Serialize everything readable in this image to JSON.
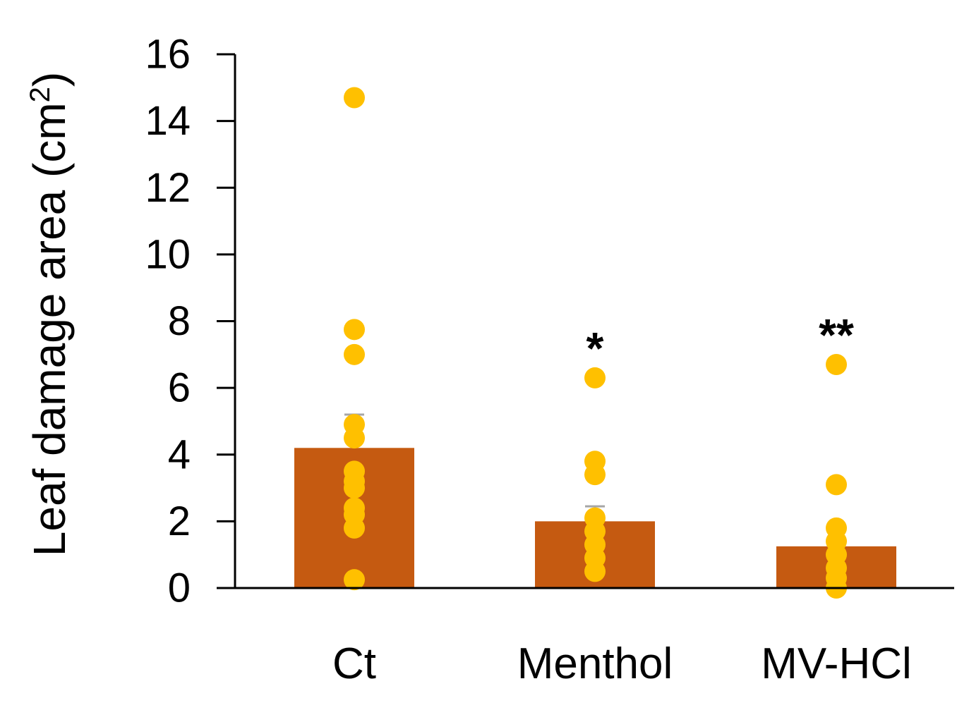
{
  "chart_data": {
    "type": "bar",
    "title": "",
    "xlabel": "",
    "ylabel": "Leaf damage area (cm",
    "ylabel_superscript": "2",
    "ylabel_close": ")",
    "ylim": [
      0,
      16
    ],
    "yticks": [
      0,
      2,
      4,
      6,
      8,
      10,
      12,
      14,
      16
    ],
    "ytick_labels": [
      "0",
      "2",
      "4",
      "6",
      "8",
      "10",
      "12",
      "14",
      "16"
    ],
    "categories": [
      "Ct",
      "Menthol",
      "MV-HCl"
    ],
    "values": [
      4.2,
      2.0,
      1.25
    ],
    "error_upper": [
      5.2,
      2.45,
      1.25
    ],
    "significance": [
      "",
      "*",
      "**"
    ],
    "points": [
      [
        14.7,
        7.75,
        7.0,
        4.9,
        4.5,
        3.5,
        3.2,
        3.0,
        2.4,
        2.2,
        1.8,
        0.25
      ],
      [
        6.3,
        3.8,
        3.4,
        2.1,
        1.7,
        1.3,
        0.9,
        0.5
      ],
      [
        6.7,
        3.1,
        1.8,
        1.4,
        1.0,
        0.6,
        0.3,
        0.0
      ]
    ],
    "bar_color": "#C55A11",
    "point_color": "#FFC000",
    "error_color": "#A6A6A6",
    "axis_color": "#000000"
  }
}
